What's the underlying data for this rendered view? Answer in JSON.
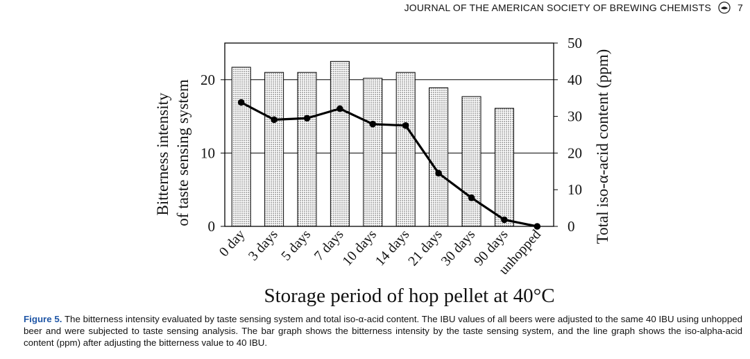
{
  "header": {
    "journal": "JOURNAL OF THE AMERICAN SOCIETY OF BREWING CHEMISTS",
    "page_number": "7",
    "icon": "journal-logo-icon"
  },
  "caption": {
    "label": "Figure 5.",
    "text": "The bitterness intensity evaluated by taste sensing system and total iso-α-acid content. The IBU values of all beers were adjusted to the same 40 IBU using unhopped beer and were subjected to taste sensing analysis. The bar graph shows the bitterness intensity by the taste sensing system, and the line graph shows the iso-alpha-acid content (ppm) after adjusting the bitterness value to 40 IBU."
  },
  "chart_data": {
    "type": "bar",
    "categories": [
      "0 day",
      "3 days",
      "5 days",
      "7 days",
      "10 days",
      "14 days",
      "21 days",
      "30 days",
      "90 days",
      "unhopped"
    ],
    "series": [
      {
        "type": "bar",
        "axis": "left",
        "values": [
          21.7,
          21.0,
          21.0,
          22.5,
          20.2,
          21.0,
          18.9,
          17.7,
          16.1,
          null
        ]
      },
      {
        "type": "line",
        "axis": "right",
        "values": [
          33.8,
          29.1,
          29.5,
          32.1,
          27.9,
          27.5,
          14.5,
          7.8,
          1.8,
          0.0
        ]
      }
    ],
    "xlabel": "Storage period of hop pellet at 40°C",
    "ylabel_left_line1": "Bitterness intensity",
    "ylabel_left_line2": "of taste sensing system",
    "ylabel_right": "Total iso-α-acid content (ppm)",
    "ylim_left": [
      0,
      25
    ],
    "ylim_right": [
      0,
      50
    ],
    "left_ticks": [
      0,
      10,
      20
    ],
    "right_ticks": [
      0,
      10,
      20,
      30,
      40,
      50
    ],
    "grid": "horizontal at 10 and 20 (left axis)",
    "bar_fill": "dotted",
    "line_color": "#000000"
  }
}
